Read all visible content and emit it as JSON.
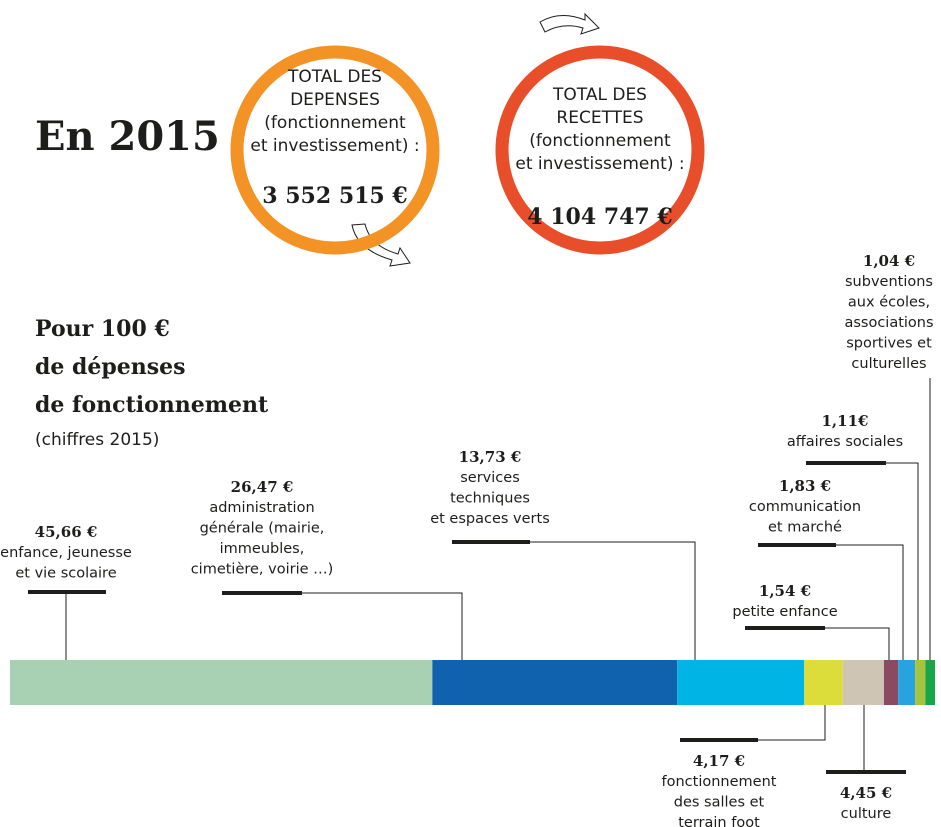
{
  "headline": "En 2015",
  "totals": [
    {
      "lines": [
        "TOTAL DES",
        "DEPENSES",
        "(fonctionnement",
        "et investissement) :"
      ],
      "value": 3552515,
      "value_label": "3 552 515 €",
      "color": "#f39325"
    },
    {
      "lines": [
        "TOTAL DES",
        "RECETTES",
        "(fonctionnement",
        "et investissement) :"
      ],
      "value": 4104747,
      "value_label": "4 104 747 €",
      "color": "#e94e2b"
    }
  ],
  "chart_data": {
    "type": "bar",
    "orientation": "horizontal",
    "stacked": true,
    "title": [
      "Pour 100 €",
      "de dépenses",
      "de fonctionnement"
    ],
    "subtitle": "(chiffres 2015)",
    "xlim": [
      0,
      100
    ],
    "categories": [
      [
        "enfance, jeunesse",
        "et vie scolaire"
      ],
      [
        "administration",
        "générale (mairie,",
        "immeubles,",
        "cimetière, voirie …)"
      ],
      [
        "services",
        "techniques",
        "et espaces verts"
      ],
      [
        "fonctionnement",
        "des salles et",
        "terrain foot"
      ],
      [
        "culture"
      ],
      [
        "petite enfance"
      ],
      [
        "communication",
        "et marché"
      ],
      [
        "affaires sociales"
      ],
      [
        "subventions",
        "aux écoles,",
        "associations",
        "sportives et",
        "culturelles"
      ]
    ],
    "series": [
      {
        "values": [
          45.66,
          26.47,
          13.73,
          4.17,
          4.45,
          1.54,
          1.83,
          1.11,
          1.04
        ],
        "value_labels": [
          "45,66 €",
          "26,47 €",
          "13,73 €",
          "4,17 €",
          "4,45 €",
          "1,54 €",
          "1,83 €",
          "1,11€",
          "1,04 €"
        ],
        "colors": [
          "#a8d1b3",
          "#1162ae",
          "#00b4e6",
          "#dcdc3a",
          "#cfc5b5",
          "#8b4a62",
          "#29a3e0",
          "#a6c33e",
          "#19a64a"
        ]
      }
    ]
  }
}
